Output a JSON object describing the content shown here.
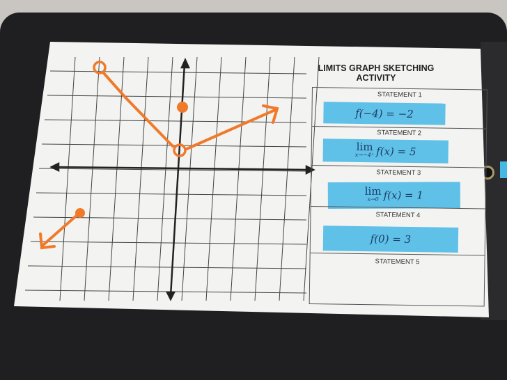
{
  "worksheet": {
    "title_line1": "LIMITS GRAPH SKETCHING",
    "title_line2": "ACTIVITY",
    "statements": [
      {
        "label": "STATEMENT 1",
        "card": "f(−4) = −2"
      },
      {
        "label": "STATEMENT 2",
        "lim": "lim",
        "sub": "x→−4⁺",
        "card": "f(x) = 5"
      },
      {
        "label": "STATEMENT 3",
        "lim": "lim",
        "sub": "x→0",
        "card": "f(x) = 1"
      },
      {
        "label": "STATEMENT 4",
        "card": "f(0) = 3"
      },
      {
        "label": "STATEMENT 5"
      }
    ]
  },
  "colors": {
    "marker": "#f07a2a",
    "card": "#5fc0e8",
    "board": "#1f1f21"
  }
}
